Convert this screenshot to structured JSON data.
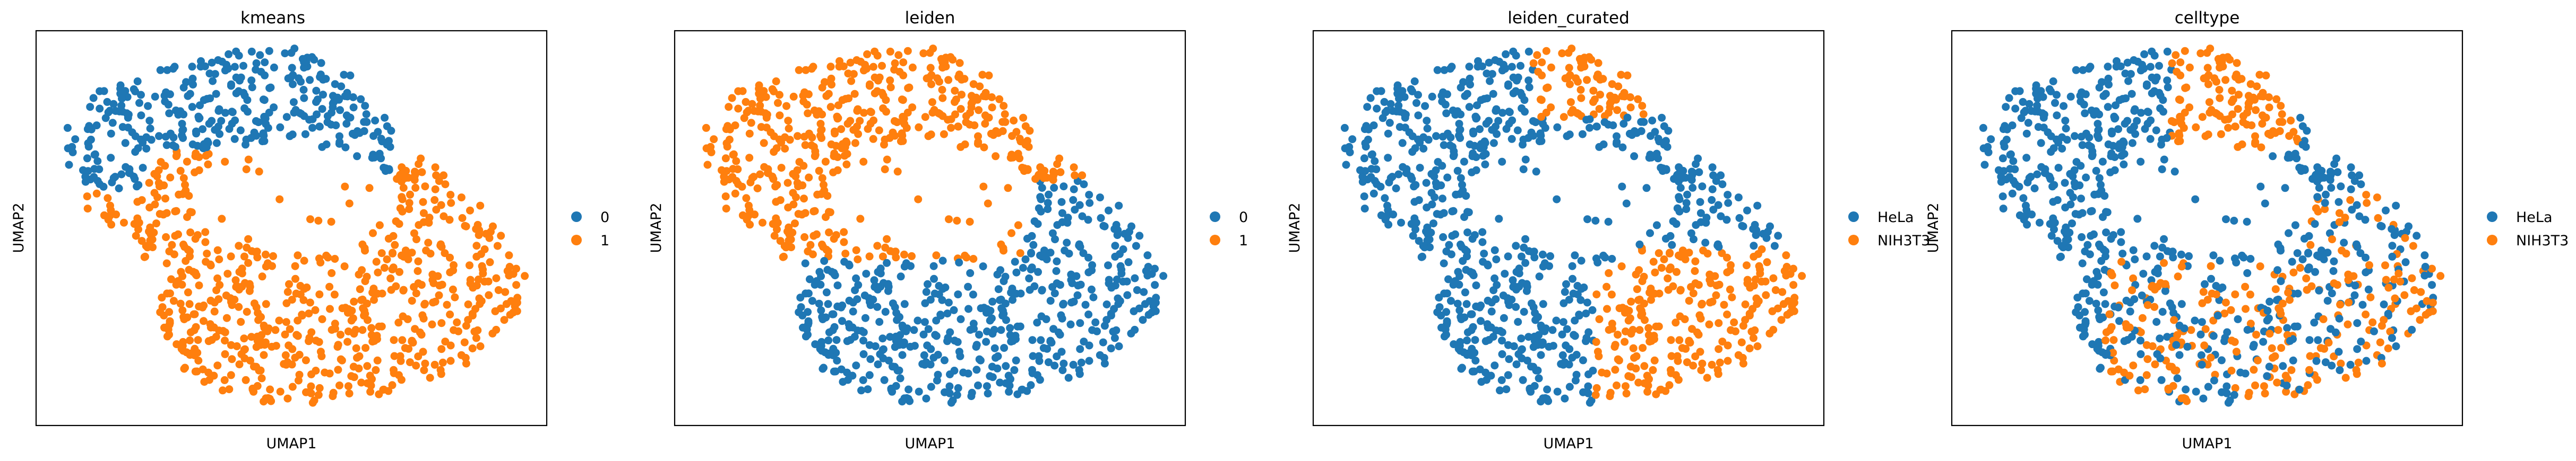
{
  "palette": {
    "blue": "#1f77b4",
    "orange": "#ff7f0e"
  },
  "chart_data": [
    {
      "type": "scatter",
      "title": "kmeans",
      "xlabel": "UMAP1",
      "ylabel": "UMAP2",
      "xticks": [],
      "yticks": [],
      "grid": false,
      "legend_position": "right",
      "legend": [
        {
          "label": "0",
          "color": "#1f77b4"
        },
        {
          "label": "1",
          "color": "#ff7f0e"
        }
      ],
      "coloring": "kmeans",
      "approx_point_count": 1000
    },
    {
      "type": "scatter",
      "title": "leiden",
      "xlabel": "UMAP1",
      "ylabel": "UMAP2",
      "xticks": [],
      "yticks": [],
      "grid": false,
      "legend_position": "right",
      "legend": [
        {
          "label": "0",
          "color": "#1f77b4"
        },
        {
          "label": "1",
          "color": "#ff7f0e"
        }
      ],
      "coloring": "leiden",
      "approx_point_count": 1000
    },
    {
      "type": "scatter",
      "title": "leiden_curated",
      "xlabel": "UMAP1",
      "ylabel": "UMAP2",
      "xticks": [],
      "yticks": [],
      "grid": false,
      "legend_position": "right",
      "legend": [
        {
          "label": "HeLa",
          "color": "#1f77b4"
        },
        {
          "label": "NIH3T3",
          "color": "#ff7f0e"
        }
      ],
      "coloring": "leiden_curated",
      "approx_point_count": 1000
    },
    {
      "type": "scatter",
      "title": "celltype",
      "xlabel": "UMAP1",
      "ylabel": "UMAP2",
      "xticks": [],
      "yticks": [],
      "grid": false,
      "legend_position": "right",
      "legend": [
        {
          "label": "HeLa",
          "color": "#1f77b4"
        },
        {
          "label": "NIH3T3",
          "color": "#ff7f0e"
        }
      ],
      "coloring": "celltype",
      "approx_point_count": 1000
    }
  ]
}
